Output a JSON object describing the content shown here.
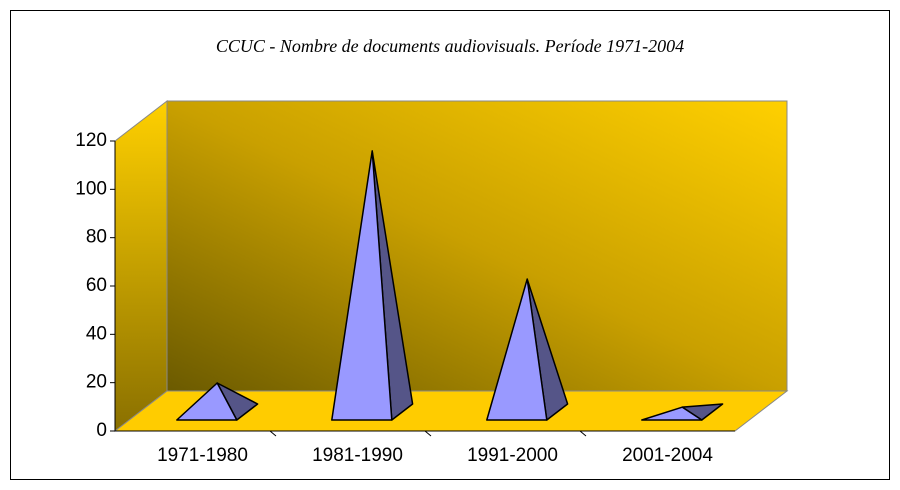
{
  "chart_data": {
    "type": "pyramid3d",
    "title": "CCUC - Nombre de documents audiovisuals. Període 1971-2004",
    "categories": [
      "1971-1980",
      "1981-1990",
      "1991-2000",
      "2001-2004"
    ],
    "values": [
      12,
      108,
      55,
      2
    ],
    "color": "#9999ff",
    "ylim": [
      0,
      120
    ],
    "yticks": [
      0,
      20,
      40,
      60,
      80,
      100,
      120
    ]
  }
}
